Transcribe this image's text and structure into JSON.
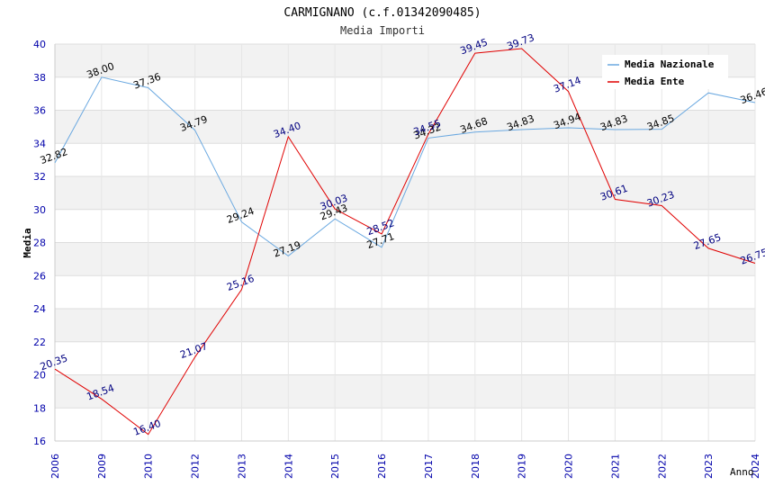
{
  "chart_data": {
    "type": "line",
    "title": "CARMIGNANO (c.f.01342090485)",
    "subtitle": "Media Importi",
    "xlabel": "Anno",
    "ylabel": "Media",
    "ylim": [
      16,
      40
    ],
    "yticks": [
      16,
      18,
      20,
      22,
      24,
      26,
      28,
      30,
      32,
      34,
      36,
      38,
      40
    ],
    "categories": [
      "2006",
      "2009",
      "2010",
      "2012",
      "2013",
      "2014",
      "2015",
      "2016",
      "2017",
      "2018",
      "2019",
      "2020",
      "2021",
      "2022",
      "2023",
      "2024"
    ],
    "grid": true,
    "legend_position": "top-right",
    "series": [
      {
        "name": "Media Nazionale",
        "color": "#6aa8e0",
        "label_color": "#000000",
        "values": [
          32.82,
          38.0,
          37.36,
          34.79,
          29.24,
          27.19,
          29.43,
          27.71,
          34.32,
          34.68,
          34.83,
          34.94,
          34.83,
          34.85,
          37.05,
          36.46
        ],
        "labels": [
          "32.82",
          "38.00",
          "37.36",
          "34.79",
          "29.24",
          "27.19",
          "29.43",
          "27.71",
          "34.32",
          "34.68",
          "34.83",
          "34.94",
          "34.83",
          "34.85",
          "",
          "36.46"
        ]
      },
      {
        "name": "Media Ente",
        "color": "#e00000",
        "label_color": "#000080",
        "values": [
          20.35,
          18.54,
          16.4,
          21.07,
          25.16,
          34.4,
          30.03,
          28.52,
          34.55,
          39.45,
          39.73,
          37.14,
          30.61,
          30.23,
          27.65,
          26.75
        ],
        "labels": [
          "20.35",
          "18.54",
          "16.40",
          "21.07",
          "25.16",
          "34.40",
          "30.03",
          "28.52",
          "34.55",
          "39.45",
          "39.73",
          "37.14",
          "30.61",
          "30.23",
          "27.65",
          "26.75"
        ]
      }
    ]
  }
}
